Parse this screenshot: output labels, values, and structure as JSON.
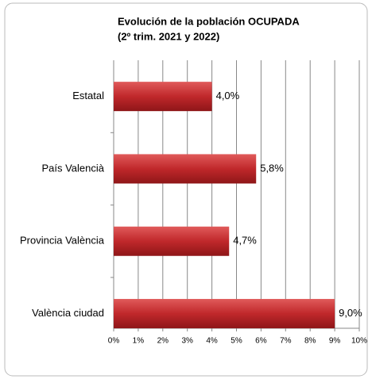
{
  "chart_data": {
    "type": "hbar",
    "title": [
      "Evolución de la población OCUPADA",
      "(2º trim. 2021 y 2022)"
    ],
    "categories": [
      "Estatal",
      "País Valencià",
      "Provincia València",
      "València ciudad"
    ],
    "values": [
      4.0,
      5.8,
      4.7,
      9.0
    ],
    "value_labels": [
      "4,0%",
      "5,8%",
      "4,7%",
      "9,0%"
    ],
    "color": "#c0282b",
    "xlim": [
      0,
      10
    ],
    "xticks": [
      {
        "value": 0,
        "label": "0%"
      },
      {
        "value": 1,
        "label": "1%"
      },
      {
        "value": 2,
        "label": "2%"
      },
      {
        "value": 3,
        "label": "3%"
      },
      {
        "value": 4,
        "label": "4%"
      },
      {
        "value": 5,
        "label": "5%"
      },
      {
        "value": 6,
        "label": "6%"
      },
      {
        "value": 7,
        "label": "7%"
      },
      {
        "value": 8,
        "label": "8%"
      },
      {
        "value": 9,
        "label": "9%"
      },
      {
        "value": 10,
        "label": "10%"
      }
    ],
    "grid": true
  }
}
